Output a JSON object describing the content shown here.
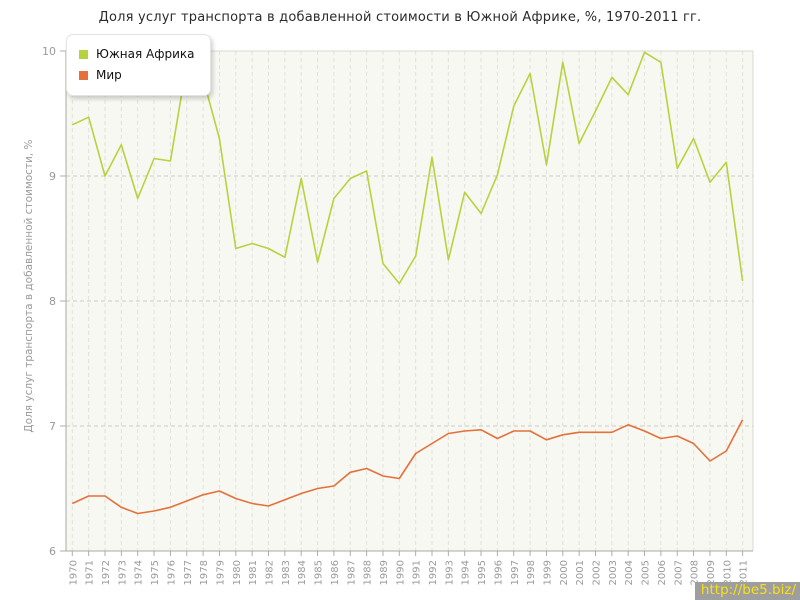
{
  "title": "Доля услуг транспорта в добавленной стоимости в Южной Африке, %, 1970-2011 гг.",
  "watermark": "http://be5.biz/",
  "chart_data": {
    "type": "line",
    "title": "Доля услуг транспорта в добавленной стоимости в Южной Африке, %, 1970-2011 гг.",
    "xlabel": "",
    "ylabel": "Доля услуг транспорта в добавленной стоимости, %",
    "ylim": [
      6,
      10
    ],
    "yticks": [
      6,
      7,
      8,
      9,
      10
    ],
    "grid": true,
    "legend_position": "top-left",
    "x": [
      1970,
      1971,
      1972,
      1973,
      1974,
      1975,
      1976,
      1977,
      1978,
      1979,
      1980,
      1981,
      1982,
      1983,
      1984,
      1985,
      1986,
      1987,
      1988,
      1989,
      1990,
      1991,
      1992,
      1993,
      1994,
      1995,
      1996,
      1997,
      1998,
      1999,
      2000,
      2001,
      2002,
      2003,
      2004,
      2005,
      2006,
      2007,
      2008,
      2009,
      2010,
      2011
    ],
    "series": [
      {
        "name": "Южная Африка",
        "color": "#b7d23f",
        "values": [
          9.41,
          9.47,
          9.0,
          9.25,
          8.82,
          9.14,
          9.12,
          9.9,
          9.78,
          9.3,
          8.42,
          8.46,
          8.42,
          8.35,
          8.98,
          8.31,
          8.82,
          8.98,
          9.04,
          8.3,
          8.14,
          8.36,
          9.15,
          8.33,
          8.87,
          8.7,
          9.01,
          9.56,
          9.82,
          9.09,
          9.91,
          9.26,
          9.52,
          9.79,
          9.65,
          9.99,
          9.91,
          9.06,
          9.3,
          8.95,
          9.11,
          8.16
        ]
      },
      {
        "name": "Мир",
        "color": "#e4703a",
        "values": [
          6.38,
          6.44,
          6.44,
          6.35,
          6.3,
          6.32,
          6.35,
          6.4,
          6.45,
          6.48,
          6.42,
          6.38,
          6.36,
          6.41,
          6.46,
          6.5,
          6.52,
          6.63,
          6.66,
          6.6,
          6.58,
          6.78,
          6.86,
          6.94,
          6.96,
          6.97,
          6.9,
          6.96,
          6.96,
          6.89,
          6.93,
          6.95,
          6.95,
          6.95,
          7.01,
          6.96,
          6.9,
          6.92,
          6.86,
          6.72,
          6.8,
          7.05
        ]
      }
    ]
  }
}
